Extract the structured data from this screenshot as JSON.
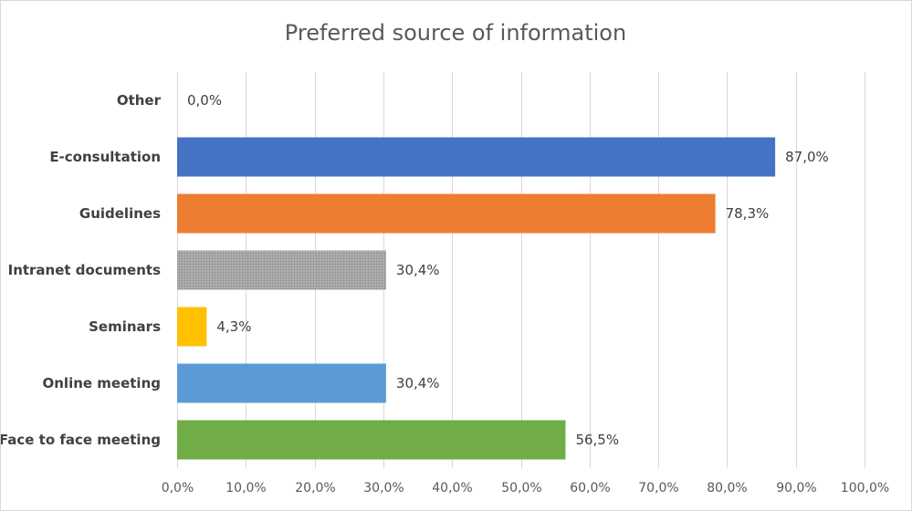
{
  "chart_data": {
    "type": "bar",
    "orientation": "horizontal",
    "title": "Preferred source of information",
    "categories": [
      "Other",
      "E-consultation",
      "Guidelines",
      "Intranet documents",
      "Seminars",
      "Online meeting",
      "Face to face meeting"
    ],
    "values": [
      0.0,
      87.0,
      78.3,
      30.4,
      4.3,
      30.4,
      56.5
    ],
    "data_labels": [
      "0,0%",
      "87,0%",
      "78,3%",
      "30,4%",
      "4,3%",
      "30,4%",
      "56,5%"
    ],
    "colors": [
      "#4472c4",
      "#4472c4",
      "#ed7d31",
      "#a5a5a5",
      "#ffc000",
      "#5b9bd5",
      "#70ad47"
    ],
    "patterned": [
      false,
      false,
      false,
      true,
      false,
      false,
      false
    ],
    "xlim": [
      0,
      100
    ],
    "xticks": [
      0,
      10,
      20,
      30,
      40,
      50,
      60,
      70,
      80,
      90,
      100
    ],
    "xtick_labels": [
      "0,0%",
      "10,0%",
      "20,0%",
      "30,0%",
      "40,0%",
      "50,0%",
      "60,0%",
      "70,0%",
      "80,0%",
      "90,0%",
      "100,0%"
    ],
    "grid": true,
    "legend": "none"
  }
}
